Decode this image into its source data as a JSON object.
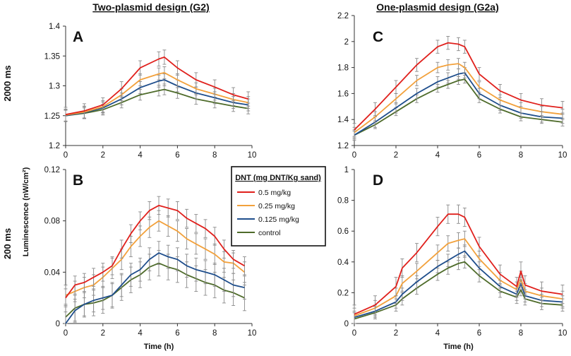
{
  "figure": {
    "title_left": "Two-plasmid design (G2)",
    "title_right": "One-plasmid design (G2a)",
    "row_label_top": "2000 ms",
    "row_label_bottom": "200 ms",
    "shared_ylabel": "Luminescence (nW/cm²)",
    "legend": {
      "title": "DNT (mg DNT/Kg sand)",
      "entries": [
        {
          "label": "0.5 mg/kg",
          "color": "#e0201c"
        },
        {
          "label": "0.25 mg/kg",
          "color": "#f2a13c"
        },
        {
          "label": "0.125 mg/kg",
          "color": "#1f4e8c"
        },
        {
          "label": "control",
          "color": "#4e6b2a"
        }
      ]
    }
  },
  "chart_data": [
    {
      "type": "line",
      "panel": "A",
      "xlabel": "",
      "ylabel": "",
      "xlim": [
        0,
        10
      ],
      "ylim": [
        1.2,
        1.4
      ],
      "xticks": [
        "0",
        "2",
        "4",
        "6",
        "8",
        "10"
      ],
      "yticks": [
        "1.2",
        "1.25",
        "1.3",
        "1.35",
        "1.4"
      ],
      "x": [
        0,
        1,
        2,
        3,
        4,
        5,
        5.3,
        6,
        7,
        8,
        9,
        9.8
      ],
      "series": [
        {
          "name": "0.5 mg/kg",
          "color": "#e0201c",
          "values": [
            1.252,
            1.258,
            1.268,
            1.295,
            1.33,
            1.345,
            1.348,
            1.33,
            1.31,
            1.298,
            1.285,
            1.278
          ],
          "err": 0.012
        },
        {
          "name": "0.25 mg/kg",
          "color": "#f2a13c",
          "values": [
            1.251,
            1.256,
            1.265,
            1.285,
            1.31,
            1.32,
            1.322,
            1.31,
            1.295,
            1.286,
            1.277,
            1.272
          ],
          "err": 0.01
        },
        {
          "name": "0.125 mg/kg",
          "color": "#1f4e8c",
          "values": [
            1.25,
            1.255,
            1.263,
            1.278,
            1.297,
            1.308,
            1.31,
            1.3,
            1.288,
            1.28,
            1.272,
            1.268
          ],
          "err": 0.01
        },
        {
          "name": "control",
          "color": "#4e6b2a",
          "values": [
            1.25,
            1.254,
            1.26,
            1.272,
            1.285,
            1.292,
            1.294,
            1.288,
            1.278,
            1.272,
            1.266,
            1.262
          ],
          "err": 0.009
        }
      ]
    },
    {
      "type": "line",
      "panel": "B",
      "xlabel": "Time (h)",
      "ylabel": "",
      "xlim": [
        0,
        10
      ],
      "ylim": [
        0,
        0.12
      ],
      "xticks": [
        "0",
        "2",
        "4",
        "6",
        "8",
        "10"
      ],
      "yticks": [
        "0",
        "0.04",
        "0.08",
        "0.12"
      ],
      "x": [
        0,
        0.5,
        1,
        1.5,
        2,
        2.5,
        3,
        3.5,
        4,
        4.5,
        5,
        5.5,
        6,
        6.5,
        7,
        7.5,
        8,
        8.5,
        9,
        9.6
      ],
      "series": [
        {
          "name": "0.5 mg/kg",
          "color": "#e0201c",
          "values": [
            0.02,
            0.03,
            0.032,
            0.036,
            0.04,
            0.045,
            0.058,
            0.07,
            0.08,
            0.088,
            0.092,
            0.09,
            0.088,
            0.082,
            0.078,
            0.074,
            0.068,
            0.058,
            0.05,
            0.045
          ],
          "err": 0.007
        },
        {
          "name": "0.25 mg/kg",
          "color": "#f2a13c",
          "values": [
            0.022,
            0.025,
            0.028,
            0.03,
            0.036,
            0.043,
            0.05,
            0.06,
            0.068,
            0.075,
            0.08,
            0.076,
            0.072,
            0.066,
            0.062,
            0.058,
            0.054,
            0.048,
            0.047,
            0.04
          ],
          "err": 0.008
        },
        {
          "name": "0.125 mg/kg",
          "color": "#1f4e8c",
          "values": [
            0,
            0.01,
            0.015,
            0.018,
            0.02,
            0.022,
            0.03,
            0.038,
            0.042,
            0.05,
            0.055,
            0.052,
            0.05,
            0.045,
            0.042,
            0.04,
            0.038,
            0.034,
            0.03,
            0.028
          ],
          "err": 0.009
        },
        {
          "name": "control",
          "color": "#4e6b2a",
          "values": [
            0.005,
            0.012,
            0.015,
            0.016,
            0.018,
            0.022,
            0.028,
            0.034,
            0.038,
            0.044,
            0.047,
            0.044,
            0.042,
            0.038,
            0.035,
            0.032,
            0.03,
            0.026,
            0.024,
            0.02
          ],
          "err": 0.01
        }
      ]
    },
    {
      "type": "line",
      "panel": "C",
      "xlabel": "",
      "ylabel": "",
      "xlim": [
        0,
        10
      ],
      "ylim": [
        1.2,
        2.2
      ],
      "xticks": [
        "0",
        "2",
        "4",
        "6",
        "8",
        "10"
      ],
      "yticks": [
        "1.2",
        "1.4",
        "1.6",
        "1.8",
        "2",
        "2.2"
      ],
      "x": [
        0,
        1,
        2,
        3,
        4,
        4.5,
        5,
        5.3,
        6,
        7,
        8,
        9,
        10
      ],
      "series": [
        {
          "name": "0.5 mg/kg",
          "color": "#e0201c",
          "values": [
            1.32,
            1.48,
            1.65,
            1.82,
            1.96,
            1.99,
            1.98,
            1.96,
            1.75,
            1.62,
            1.55,
            1.51,
            1.49
          ],
          "err": 0.05
        },
        {
          "name": "0.25 mg/kg",
          "color": "#f2a13c",
          "values": [
            1.3,
            1.42,
            1.56,
            1.7,
            1.8,
            1.82,
            1.83,
            1.8,
            1.65,
            1.55,
            1.49,
            1.46,
            1.44
          ],
          "err": 0.04
        },
        {
          "name": "0.125 mg/kg",
          "color": "#1f4e8c",
          "values": [
            1.28,
            1.38,
            1.49,
            1.6,
            1.69,
            1.72,
            1.75,
            1.76,
            1.6,
            1.51,
            1.45,
            1.42,
            1.41
          ],
          "err": 0.04
        },
        {
          "name": "control",
          "color": "#4e6b2a",
          "values": [
            1.28,
            1.36,
            1.46,
            1.56,
            1.64,
            1.67,
            1.7,
            1.71,
            1.56,
            1.48,
            1.42,
            1.4,
            1.38
          ],
          "err": 0.03
        }
      ]
    },
    {
      "type": "line",
      "panel": "D",
      "xlabel": "Time (h)",
      "ylabel": "",
      "xlim": [
        0,
        10
      ],
      "ylim": [
        0,
        1
      ],
      "xticks": [
        "0",
        "2",
        "4",
        "6",
        "8",
        "10"
      ],
      "yticks": [
        "0",
        "0.2",
        "0.4",
        "0.6",
        "0.8",
        "1"
      ],
      "x": [
        0,
        1,
        2,
        2.3,
        3,
        4,
        4.5,
        5,
        5.3,
        6,
        7,
        7.8,
        8,
        8.2,
        9,
        10
      ],
      "series": [
        {
          "name": "0.5 mg/kg",
          "color": "#e0201c",
          "values": [
            0.06,
            0.12,
            0.24,
            0.36,
            0.46,
            0.63,
            0.71,
            0.71,
            0.69,
            0.5,
            0.32,
            0.24,
            0.34,
            0.25,
            0.21,
            0.19
          ],
          "err": 0.06
        },
        {
          "name": "0.25 mg/kg",
          "color": "#f2a13c",
          "values": [
            0.05,
            0.1,
            0.18,
            0.26,
            0.34,
            0.46,
            0.52,
            0.54,
            0.55,
            0.42,
            0.28,
            0.22,
            0.29,
            0.21,
            0.18,
            0.16
          ],
          "err": 0.05
        },
        {
          "name": "0.125 mg/kg",
          "color": "#1f4e8c",
          "values": [
            0.04,
            0.08,
            0.14,
            0.19,
            0.27,
            0.37,
            0.41,
            0.45,
            0.47,
            0.36,
            0.24,
            0.19,
            0.26,
            0.18,
            0.15,
            0.14
          ],
          "err": 0.04
        },
        {
          "name": "control",
          "color": "#4e6b2a",
          "values": [
            0.03,
            0.07,
            0.12,
            0.16,
            0.23,
            0.32,
            0.36,
            0.39,
            0.4,
            0.31,
            0.21,
            0.17,
            0.22,
            0.16,
            0.13,
            0.12
          ],
          "err": 0.04
        }
      ]
    }
  ]
}
